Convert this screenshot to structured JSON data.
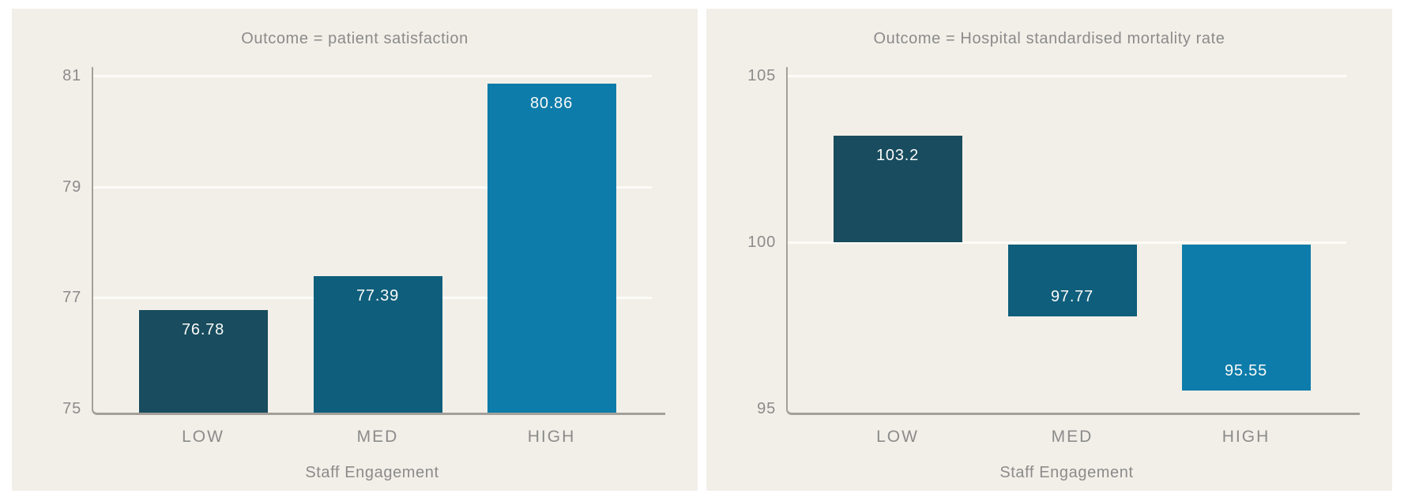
{
  "page": {
    "background": "#ffffff",
    "panel_background": "#f2efe8",
    "gridline_color": "#fcfbf7",
    "axis_color": "#a3a09a",
    "text_color": "#8b8b8b",
    "value_label_color": "#fafaf8"
  },
  "series_colors": {
    "LOW": "#184c5e",
    "MED": "#0e5e7c",
    "HIGH": "#0d7caa"
  },
  "chart_data": [
    {
      "type": "bar",
      "title": "Outcome = patient satisfaction",
      "xlabel": "Staff Engagement",
      "ylabel": "",
      "categories": [
        "LOW",
        "MED",
        "HIGH"
      ],
      "values": [
        76.78,
        77.39,
        80.86
      ],
      "value_labels": [
        "76.78",
        "77.39",
        "80.86"
      ],
      "bar_colors": [
        "#184c5e",
        "#0e5e7c",
        "#0d7caa"
      ],
      "yticks": [
        75,
        77,
        79,
        81
      ],
      "ylim": [
        75,
        81
      ],
      "bar_baseline": 75,
      "grid": true,
      "legend": "none"
    },
    {
      "type": "bar",
      "title": "Outcome = Hospital standardised mortality rate",
      "xlabel": "Staff Engagement",
      "ylabel": "",
      "categories": [
        "LOW",
        "MED",
        "HIGH"
      ],
      "values": [
        103.2,
        97.77,
        95.55
      ],
      "value_labels": [
        "103.2",
        "97.77",
        "95.55"
      ],
      "bar_colors": [
        "#184c5e",
        "#0e5e7c",
        "#0d7caa"
      ],
      "yticks": [
        95,
        100,
        105
      ],
      "ylim": [
        95,
        105
      ],
      "bar_baseline": 100,
      "grid": true,
      "legend": "none"
    }
  ]
}
